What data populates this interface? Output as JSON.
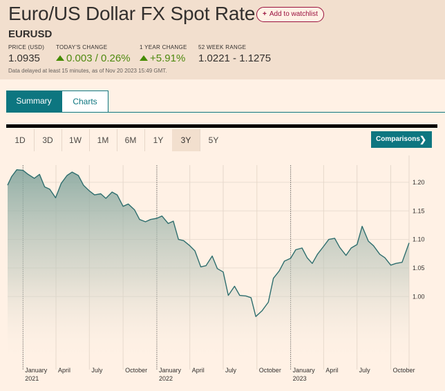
{
  "page": {
    "title": "Euro/US Dollar FX Spot Rate",
    "watch_button": "Add to watchlist",
    "symbol": "EURUSD"
  },
  "stats": [
    {
      "label": "PRICE (USD)",
      "value": "1.0935",
      "trend": "none"
    },
    {
      "label": "TODAY'S CHANGE",
      "value": "0.003 / 0.26%",
      "trend": "up"
    },
    {
      "label": "1 YEAR CHANGE",
      "value": "+5.91%",
      "trend": "up"
    },
    {
      "label": "52 WEEK RANGE",
      "value": "1.0221 - 1.1275",
      "trend": "none"
    }
  ],
  "disclaimer": "Data delayed at least 15 minutes, as of Nov 20 2023 15:49 GMT.",
  "tabs": [
    {
      "label": "Summary",
      "active": true
    },
    {
      "label": "Charts",
      "active": false
    }
  ],
  "ranges": [
    {
      "label": "1D",
      "selected": false
    },
    {
      "label": "3D",
      "selected": false
    },
    {
      "label": "1W",
      "selected": false
    },
    {
      "label": "1M",
      "selected": false
    },
    {
      "label": "6M",
      "selected": false
    },
    {
      "label": "1Y",
      "selected": false
    },
    {
      "label": "3Y",
      "selected": true
    },
    {
      "label": "5Y",
      "selected": false
    }
  ],
  "comparisons_label": "Comparisons",
  "icons": {
    "watch": "plus-icon",
    "up": "up-arrow-icon",
    "comparisons": "chevron-right-icon"
  },
  "colors": {
    "line": "#2e6e6e",
    "accent": "#0d7680",
    "watch": "#990f3d",
    "up": "#458b00"
  },
  "chart_data": {
    "type": "area",
    "x_start": "2020-11-20",
    "y_ticks": [
      "1.20",
      "1.15",
      "1.10",
      "1.05",
      "1.00"
    ],
    "y_tick_values": [
      1.2,
      1.15,
      1.1,
      1.05,
      1.0
    ],
    "ylim": [
      0.935,
      1.235
    ],
    "x_labels": [
      {
        "date": "2021-01-01",
        "label": "January",
        "year": "2021"
      },
      {
        "date": "2021-04-01",
        "label": "April",
        "year": ""
      },
      {
        "date": "2021-07-01",
        "label": "July",
        "year": ""
      },
      {
        "date": "2021-10-01",
        "label": "October",
        "year": ""
      },
      {
        "date": "2022-01-01",
        "label": "January",
        "year": "2022"
      },
      {
        "date": "2022-04-01",
        "label": "April",
        "year": ""
      },
      {
        "date": "2022-07-01",
        "label": "July",
        "year": ""
      },
      {
        "date": "2022-10-01",
        "label": "October",
        "year": ""
      },
      {
        "date": "2023-01-01",
        "label": "January",
        "year": "2023"
      },
      {
        "date": "2023-04-01",
        "label": "April",
        "year": ""
      },
      {
        "date": "2023-07-01",
        "label": "July",
        "year": ""
      },
      {
        "date": "2023-10-01",
        "label": "October",
        "year": ""
      }
    ],
    "x_end": "2023-11-20",
    "series": [
      {
        "dates": [
          "2020-11-20",
          "2020-12-01",
          "2020-12-15",
          "2021-01-01",
          "2021-01-15",
          "2021-02-01",
          "2021-02-15",
          "2021-03-01",
          "2021-03-15",
          "2021-03-31",
          "2021-04-15",
          "2021-05-01",
          "2021-05-15",
          "2021-06-01",
          "2021-06-15",
          "2021-07-01",
          "2021-07-15",
          "2021-08-01",
          "2021-08-15",
          "2021-09-01",
          "2021-09-15",
          "2021-10-01",
          "2021-10-15",
          "2021-11-01",
          "2021-11-15",
          "2021-12-01",
          "2021-12-15",
          "2022-01-01",
          "2022-01-15",
          "2022-02-01",
          "2022-02-15",
          "2022-03-01",
          "2022-03-15",
          "2022-04-01",
          "2022-04-15",
          "2022-05-01",
          "2022-05-15",
          "2022-06-01",
          "2022-06-15",
          "2022-07-01",
          "2022-07-15",
          "2022-08-01",
          "2022-08-15",
          "2022-09-01",
          "2022-09-15",
          "2022-09-28",
          "2022-10-15",
          "2022-11-01",
          "2022-11-15",
          "2022-12-01",
          "2022-12-15",
          "2023-01-01",
          "2023-01-15",
          "2023-02-01",
          "2023-02-15",
          "2023-03-01",
          "2023-03-15",
          "2023-04-01",
          "2023-04-15",
          "2023-05-01",
          "2023-05-15",
          "2023-06-01",
          "2023-06-15",
          "2023-07-01",
          "2023-07-15",
          "2023-08-01",
          "2023-08-15",
          "2023-09-01",
          "2023-09-15",
          "2023-10-01",
          "2023-10-15",
          "2023-11-01",
          "2023-11-20"
        ],
        "values": [
          1.195,
          1.21,
          1.222,
          1.221,
          1.214,
          1.207,
          1.214,
          1.192,
          1.188,
          1.173,
          1.198,
          1.212,
          1.218,
          1.212,
          1.195,
          1.185,
          1.178,
          1.18,
          1.172,
          1.183,
          1.178,
          1.158,
          1.162,
          1.152,
          1.135,
          1.131,
          1.135,
          1.137,
          1.141,
          1.128,
          1.132,
          1.1,
          1.098,
          1.089,
          1.08,
          1.052,
          1.054,
          1.071,
          1.049,
          1.043,
          1.002,
          1.018,
          1.002,
          1.001,
          0.998,
          0.965,
          0.975,
          0.99,
          1.032,
          1.045,
          1.062,
          1.067,
          1.082,
          1.085,
          1.068,
          1.058,
          1.074,
          1.088,
          1.1,
          1.102,
          1.086,
          1.072,
          1.085,
          1.091,
          1.123,
          1.097,
          1.089,
          1.074,
          1.068,
          1.055,
          1.058,
          1.06,
          1.094
        ]
      }
    ]
  }
}
